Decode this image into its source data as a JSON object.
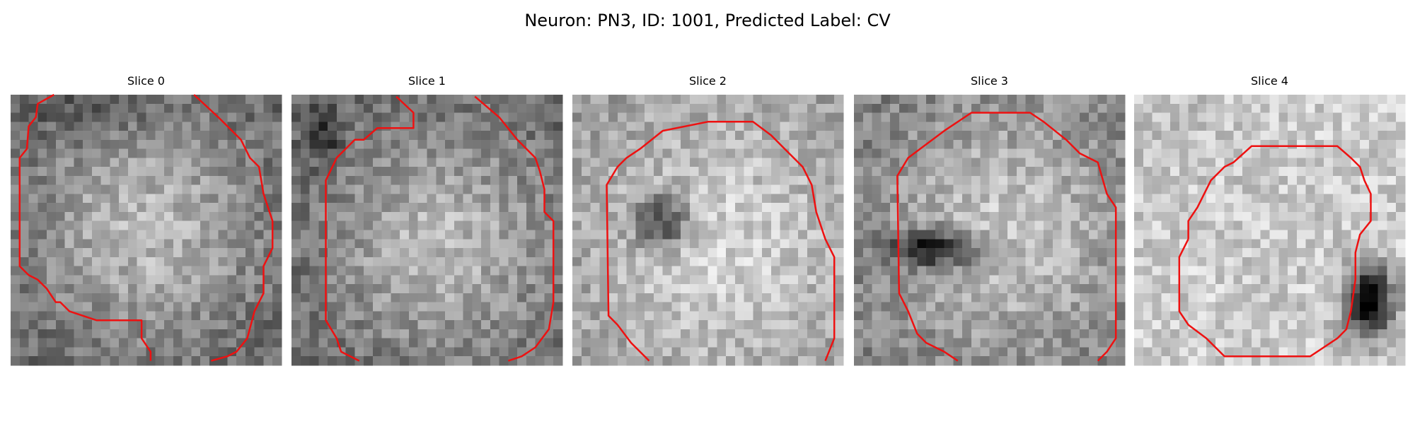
{
  "title": "Neuron: PN3, ID: 1001, Predicted Label: CV",
  "panels": [
    {
      "title": "Slice 0"
    },
    {
      "title": "Slice 1"
    },
    {
      "title": "Slice 2"
    },
    {
      "title": "Slice 3"
    },
    {
      "title": "Slice 4"
    }
  ]
}
